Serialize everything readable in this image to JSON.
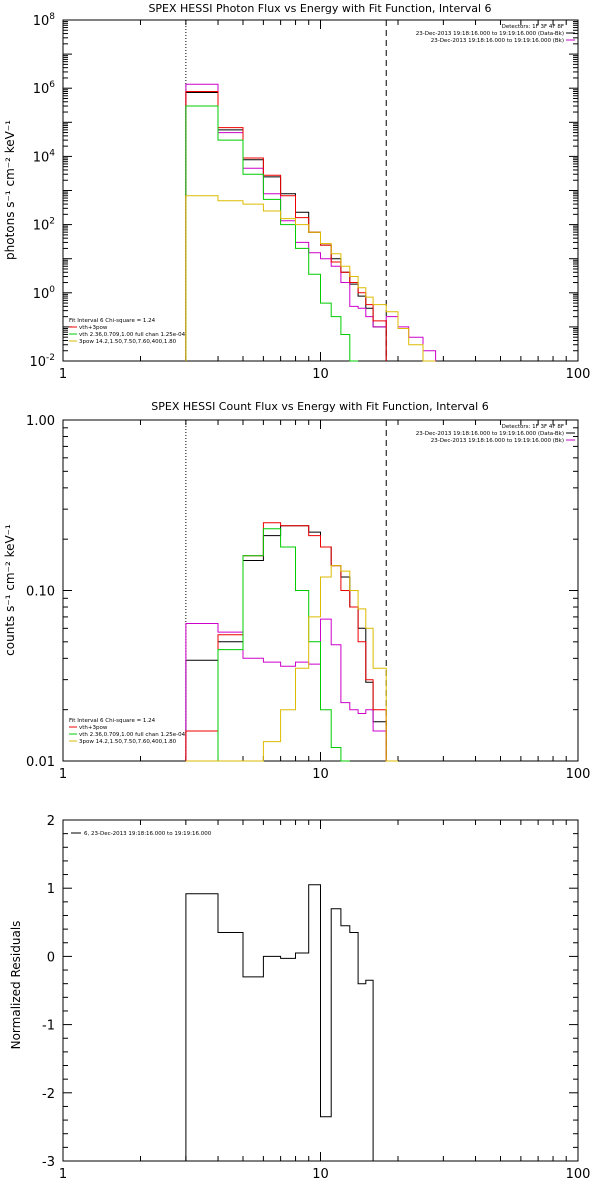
{
  "chart_data": [
    {
      "type": "line",
      "id": "photon",
      "title": "SPEX HESSI Photon Flux vs Energy with Fit Function, Interval 6",
      "ylabel": "photons s⁻¹ cm⁻² keV⁻¹",
      "xlabel": "",
      "xscale": "log",
      "yscale": "log",
      "xlim": [
        1,
        100
      ],
      "ylim": [
        0.01,
        100000000
      ],
      "x_ticks": [
        {
          "v": 1,
          "label": "1"
        },
        {
          "v": 10,
          "label": "10"
        },
        {
          "v": 100,
          "label": "100"
        }
      ],
      "y_ticks": [
        {
          "v": 0.01,
          "m": "10",
          "e": "-2"
        },
        {
          "v": 1,
          "m": "10",
          "e": "0"
        },
        {
          "v": 100,
          "m": "10",
          "e": "2"
        },
        {
          "v": 10000,
          "m": "10",
          "e": "4"
        },
        {
          "v": 1000000,
          "m": "10",
          "e": "6"
        },
        {
          "v": 100000000,
          "m": "10",
          "e": "8"
        }
      ],
      "vlines": [
        {
          "x": 3.0,
          "style": "dotted"
        },
        {
          "x": 18.0,
          "style": "dashed"
        }
      ],
      "legend_topright": [
        {
          "text": "Detectors: 1F 3F 4F 8F",
          "color": ""
        },
        {
          "text": "23-Dec-2013 19:18:16.000 to 19:19:16.000 (Data-Bk)",
          "color": "#000000"
        },
        {
          "text": "23-Dec-2013 19:18:16.000 to 19:19:16.000 (Bk)",
          "color": "#cc00cc"
        }
      ],
      "legend_bottomleft": [
        {
          "text": "Fit Interval 6    Chi-square = 1.24",
          "color": ""
        },
        {
          "text": "vth+3pow",
          "color": "#ee0000"
        },
        {
          "text": "vth 2.36,0.709,1.00  full chan 1.25e-04",
          "color": "#00cc00"
        },
        {
          "text": "3pow 14.2,1.50,7.50,7.60,400,1.80",
          "color": "#ddbb00"
        }
      ],
      "edges": [
        3.0,
        4.0,
        5.0,
        6.0,
        7.0,
        8.0,
        9.0,
        10.0,
        11.0,
        12.0,
        13.0,
        14.0,
        15.0,
        16.0,
        18.0,
        20.0,
        22.0,
        25.0,
        28.0
      ],
      "series": [
        {
          "name": "Data-Bk",
          "color": "#000000",
          "values": [
            750000,
            60000,
            8000,
            2500,
            800,
            230,
            60,
            25,
            10,
            4,
            1.8,
            0.8,
            0.35,
            0.1,
            null,
            null,
            null,
            null
          ]
        },
        {
          "name": "Bk",
          "color": "#cc00cc",
          "values": [
            1300000,
            50000,
            4500,
            800,
            130,
            30,
            15,
            10,
            6,
            2,
            0.4,
            0.35,
            0.2,
            0.1,
            0.2,
            0.1,
            0.05,
            0.02
          ]
        },
        {
          "name": "vth+3pow",
          "color": "#ee0000",
          "values": [
            800000,
            70000,
            9000,
            2800,
            700,
            160,
            60,
            25,
            8,
            4,
            2,
            1,
            0.45,
            0.15,
            null,
            null,
            null,
            null
          ]
        },
        {
          "name": "vth",
          "color": "#00cc00",
          "values": [
            300000,
            30000,
            3000,
            550,
            100,
            20,
            3.5,
            0.5,
            0.2,
            0.06,
            0.01,
            null,
            null,
            null,
            null,
            null,
            null,
            null
          ]
        },
        {
          "name": "3pow",
          "color": "#ddbb00",
          "values": [
            700,
            500,
            400,
            250,
            150,
            100,
            60,
            28,
            14,
            6,
            3,
            1.4,
            0.75,
            0.45,
            0.28,
            0.09,
            0.03,
            0.01
          ]
        }
      ]
    },
    {
      "type": "line",
      "id": "count",
      "title": "SPEX HESSI Count Flux vs Energy with Fit Function, Interval 6",
      "ylabel": "counts s⁻¹ cm⁻² keV⁻¹",
      "xlabel": "",
      "xscale": "log",
      "yscale": "log",
      "xlim": [
        1,
        100
      ],
      "ylim": [
        0.01,
        1.0
      ],
      "x_ticks": [
        {
          "v": 1,
          "label": "1"
        },
        {
          "v": 10,
          "label": "10"
        },
        {
          "v": 100,
          "label": "100"
        }
      ],
      "y_ticks": [
        {
          "v": 0.01,
          "label": "0.01"
        },
        {
          "v": 0.1,
          "label": "0.10"
        },
        {
          "v": 1.0,
          "label": "1.00"
        }
      ],
      "vlines": [
        {
          "x": 3.0,
          "style": "dotted"
        },
        {
          "x": 18.0,
          "style": "dashed"
        }
      ],
      "legend_topright": [
        {
          "text": "Detectors: 1F 3F 4F 8F",
          "color": ""
        },
        {
          "text": "23-Dec-2013 19:18:16.000 to 19:19:16.000 (Data-Bk)",
          "color": "#000000"
        },
        {
          "text": "23-Dec-2013 19:18:16.000 to 19:19:16.000 (Bk)",
          "color": "#cc00cc"
        }
      ],
      "legend_bottomleft": [
        {
          "text": "Fit Interval 6    Chi-square = 1.24",
          "color": ""
        },
        {
          "text": "vth+3pow",
          "color": "#ee0000"
        },
        {
          "text": "vth 2.36,0.709,1.00  full chan 1.25e-04",
          "color": "#00cc00"
        },
        {
          "text": "3pow 14.2,1.50,7.50,7.60,400,1.80",
          "color": "#ddbb00"
        }
      ],
      "edges": [
        3.0,
        4.0,
        5.0,
        6.0,
        7.0,
        8.0,
        9.0,
        10.0,
        11.0,
        12.0,
        13.0,
        14.0,
        15.0,
        16.0,
        18.0,
        20.0
      ],
      "series": [
        {
          "name": "Data-Bk",
          "color": "#000000",
          "values": [
            0.039,
            0.05,
            0.15,
            0.21,
            0.24,
            0.24,
            0.22,
            0.18,
            0.14,
            0.12,
            0.08,
            0.06,
            0.029,
            0.017,
            0.01
          ]
        },
        {
          "name": "Bk",
          "color": "#cc00cc",
          "values": [
            0.064,
            0.057,
            0.04,
            0.038,
            0.036,
            0.038,
            0.037,
            0.068,
            0.048,
            0.022,
            0.02,
            0.019,
            0.02,
            0.015,
            0.01
          ]
        },
        {
          "name": "vth+3pow",
          "color": "#ee0000",
          "values": [
            0.015,
            0.055,
            0.16,
            0.25,
            0.24,
            0.24,
            0.21,
            0.18,
            0.14,
            0.1,
            0.08,
            0.05,
            0.03,
            0.02,
            0.01
          ]
        },
        {
          "name": "vth",
          "color": "#00cc00",
          "values": [
            0.005,
            0.045,
            0.16,
            0.23,
            0.18,
            0.1,
            0.05,
            0.02,
            0.012,
            0.006,
            null,
            null,
            null,
            null,
            null
          ]
        },
        {
          "name": "3pow",
          "color": "#ddbb00",
          "values": [
            0.0,
            0.008,
            0.01,
            0.013,
            0.02,
            0.035,
            0.07,
            0.12,
            0.14,
            0.13,
            0.1,
            0.078,
            0.06,
            0.035,
            0.01
          ]
        }
      ]
    },
    {
      "type": "line",
      "id": "resid",
      "title": "",
      "ylabel": "Normalized Residuals",
      "xlabel": "",
      "xscale": "log",
      "yscale": "linear",
      "xlim": [
        1,
        100
      ],
      "ylim": [
        -3,
        2
      ],
      "x_ticks": [
        {
          "v": 1,
          "label": "1"
        },
        {
          "v": 10,
          "label": "10"
        },
        {
          "v": 100,
          "label": "100"
        }
      ],
      "y_ticks": [
        {
          "v": -3,
          "label": "-3"
        },
        {
          "v": -2,
          "label": "-2"
        },
        {
          "v": -1,
          "label": "-1"
        },
        {
          "v": 0,
          "label": "0"
        },
        {
          "v": 1,
          "label": "1"
        },
        {
          "v": 2,
          "label": "2"
        }
      ],
      "legend_topleft": [
        {
          "text": "6, 23-Dec-2013 19:18:16.000 to 19:19:16.000",
          "color": "#000000"
        }
      ],
      "edges": [
        3.0,
        4.0,
        5.0,
        6.0,
        7.0,
        8.0,
        9.0,
        10.0,
        11.0,
        12.0,
        13.0,
        14.0,
        15.0,
        16.0,
        18.0
      ],
      "series": [
        {
          "name": "6, 23-Dec-2013 19:18:16.000 to 19:19:16.000",
          "color": "#000000",
          "values": [
            0.92,
            0.35,
            -0.3,
            0.0,
            -0.03,
            0.05,
            1.05,
            -2.35,
            0.7,
            0.45,
            0.35,
            -0.4,
            -0.35,
            -3.2
          ]
        }
      ]
    }
  ]
}
